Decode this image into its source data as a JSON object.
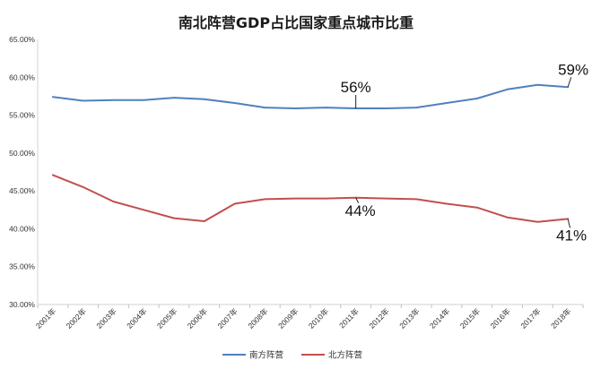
{
  "chart_data": {
    "type": "line",
    "title": "南北阵营GDP占比国家重点城市比重",
    "categories": [
      "2001年",
      "2002年",
      "2003年",
      "2004年",
      "2005年",
      "2006年",
      "2007年",
      "2008年",
      "2009年",
      "2010年",
      "2011年",
      "2012年",
      "2013年",
      "2014年",
      "2015年",
      "2016年",
      "2017年",
      "2018年"
    ],
    "y_ticks": [
      "65.00%",
      "60.00%",
      "55.00%",
      "50.00%",
      "45.00%",
      "40.00%",
      "35.00%",
      "30.00%"
    ],
    "ylim": [
      30,
      65
    ],
    "grid": false,
    "legend_position": "bottom",
    "series": [
      {
        "name": "南方阵营",
        "color": "#4f81bd",
        "values": [
          57.4,
          56.9,
          57.0,
          57.0,
          57.3,
          57.1,
          56.6,
          56.0,
          55.9,
          56.0,
          55.9,
          55.9,
          56.0,
          56.6,
          57.2,
          58.4,
          59.0,
          58.7
        ]
      },
      {
        "name": "北方阵营",
        "color": "#c0504d",
        "values": [
          47.1,
          45.5,
          43.6,
          42.5,
          41.4,
          41.0,
          43.3,
          43.9,
          44.0,
          44.0,
          44.1,
          44.0,
          43.9,
          43.3,
          42.8,
          41.5,
          40.9,
          41.3
        ]
      }
    ],
    "annotations": [
      {
        "text": "56%",
        "series": 0,
        "index": 10
      },
      {
        "text": "59%",
        "series": 0,
        "index": 17
      },
      {
        "text": "44%",
        "series": 1,
        "index": 10
      },
      {
        "text": "41%",
        "series": 1,
        "index": 17
      }
    ]
  }
}
